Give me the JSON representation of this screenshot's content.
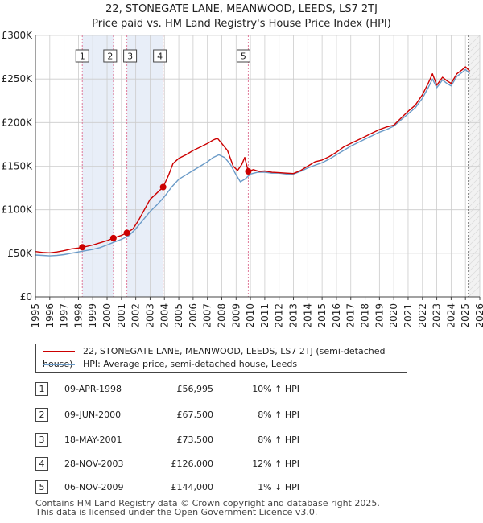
{
  "title_line1": "22, STONEGATE LANE, MEANWOOD, LEEDS, LS7 2TJ",
  "title_line2": "Price paid vs. HM Land Registry's House Price Index (HPI)",
  "legend": {
    "red_label": "22, STONEGATE LANE, MEANWOOD, LEEDS, LS7 2TJ (semi-detached house)",
    "blue_label": "HPI: Average price, semi-detached house, Leeds"
  },
  "colors": {
    "red": "#cc0000",
    "blue": "#6b9bc8",
    "band": "#e8eef8",
    "grid": "#cccccc"
  },
  "transactions": [
    {
      "num": "1",
      "date": "09-APR-1998",
      "price": "£56,995",
      "hpi": "10% ↑ HPI"
    },
    {
      "num": "2",
      "date": "09-JUN-2000",
      "price": "£67,500",
      "hpi": "8% ↑ HPI"
    },
    {
      "num": "3",
      "date": "18-MAY-2001",
      "price": "£73,500",
      "hpi": "8% ↑ HPI"
    },
    {
      "num": "4",
      "date": "28-NOV-2003",
      "price": "£126,000",
      "hpi": "12% ↑ HPI"
    },
    {
      "num": "5",
      "date": "06-NOV-2009",
      "price": "£144,000",
      "hpi": "1% ↓ HPI"
    }
  ],
  "footer_line1": "Contains HM Land Registry data © Crown copyright and database right 2025.",
  "footer_line2": "This data is licensed under the Open Government Licence v3.0.",
  "chart_data": {
    "type": "line",
    "title": "Price paid vs. HM Land Registry's House Price Index (HPI)",
    "xlim": [
      1995,
      2026
    ],
    "ylim": [
      0,
      300000
    ],
    "y_ticks": [
      0,
      50000,
      100000,
      150000,
      200000,
      250000,
      300000
    ],
    "y_tick_labels": [
      "£0",
      "£50K",
      "£100K",
      "£150K",
      "£200K",
      "£250K",
      "£300K"
    ],
    "x_ticks": [
      1995,
      1996,
      1997,
      1998,
      1999,
      2000,
      2001,
      2002,
      2003,
      2004,
      2005,
      2006,
      2007,
      2008,
      2009,
      2010,
      2011,
      2012,
      2013,
      2014,
      2015,
      2016,
      2017,
      2018,
      2019,
      2020,
      2021,
      2022,
      2023,
      2024,
      2025,
      2026
    ],
    "grid": true,
    "shaded_spans": [
      [
        1998.27,
        2000.44
      ],
      [
        2001.38,
        2003.91
      ]
    ],
    "forecast_start": 2025.2,
    "sale_points": [
      {
        "label": "1",
        "x": 1998.27,
        "y": 56995
      },
      {
        "label": "2",
        "x": 2000.44,
        "y": 67500
      },
      {
        "label": "3",
        "x": 2001.38,
        "y": 73500
      },
      {
        "label": "4",
        "x": 2003.91,
        "y": 126000
      },
      {
        "label": "5",
        "x": 2009.85,
        "y": 144000
      }
    ],
    "series": [
      {
        "name": "22, STONEGATE LANE, MEANWOOD, LEEDS, LS7 2TJ (semi-detached house)",
        "color": "#cc0000",
        "x": [
          1995.0,
          1995.5,
          1996.0,
          1996.5,
          1997.0,
          1997.5,
          1998.0,
          1998.27,
          1998.6,
          1999.0,
          1999.5,
          2000.0,
          2000.44,
          2000.8,
          2001.0,
          2001.38,
          2001.8,
          2002.2,
          2002.6,
          2003.0,
          2003.4,
          2003.91,
          2004.3,
          2004.6,
          2005.0,
          2005.5,
          2006.0,
          2006.5,
          2007.0,
          2007.4,
          2007.7,
          2008.0,
          2008.4,
          2008.8,
          2009.1,
          2009.4,
          2009.6,
          2009.85,
          2010.2,
          2010.6,
          2011.0,
          2011.5,
          2012.0,
          2012.5,
          2013.0,
          2013.5,
          2014.0,
          2014.5,
          2015.0,
          2015.5,
          2016.0,
          2016.5,
          2017.0,
          2017.5,
          2018.0,
          2018.5,
          2019.0,
          2019.5,
          2020.0,
          2020.5,
          2021.0,
          2021.5,
          2022.0,
          2022.4,
          2022.7,
          2023.0,
          2023.4,
          2023.7,
          2024.0,
          2024.4,
          2024.8,
          2025.0,
          2025.3
        ],
        "values": [
          52000,
          51000,
          50500,
          51500,
          53000,
          55000,
          56000,
          56995,
          58000,
          59500,
          62000,
          64500,
          67500,
          69500,
          70500,
          73500,
          78000,
          88000,
          100000,
          112000,
          118000,
          126000,
          140000,
          153000,
          159000,
          163000,
          168000,
          172000,
          176000,
          180000,
          182000,
          176000,
          168000,
          150000,
          145000,
          152000,
          160000,
          144000,
          146000,
          144000,
          144500,
          143000,
          142500,
          142000,
          141500,
          145000,
          150000,
          155000,
          157000,
          161000,
          166000,
          172000,
          176000,
          180000,
          184000,
          188000,
          192000,
          195000,
          197000,
          205000,
          213000,
          220000,
          232000,
          245000,
          256000,
          243000,
          252000,
          248000,
          245000,
          256000,
          261000,
          264000,
          259000
        ]
      },
      {
        "name": "HPI: Average price, semi-detached house, Leeds",
        "color": "#6b9bc8",
        "x": [
          1995.0,
          1995.5,
          1996.0,
          1996.5,
          1997.0,
          1997.5,
          1998.0,
          1998.5,
          1999.0,
          1999.5,
          2000.0,
          2000.5,
          2001.0,
          2001.5,
          2002.0,
          2002.5,
          2003.0,
          2003.5,
          2004.0,
          2004.5,
          2005.0,
          2005.5,
          2006.0,
          2006.5,
          2007.0,
          2007.4,
          2007.8,
          2008.2,
          2008.6,
          2009.0,
          2009.3,
          2009.6,
          2010.0,
          2010.5,
          2011.0,
          2011.5,
          2012.0,
          2012.5,
          2013.0,
          2013.5,
          2014.0,
          2014.5,
          2015.0,
          2015.5,
          2016.0,
          2016.5,
          2017.0,
          2017.5,
          2018.0,
          2018.5,
          2019.0,
          2019.5,
          2020.0,
          2020.5,
          2021.0,
          2021.5,
          2022.0,
          2022.4,
          2022.7,
          2023.0,
          2023.4,
          2023.7,
          2024.0,
          2024.4,
          2024.8,
          2025.0,
          2025.3
        ],
        "values": [
          48000,
          47500,
          47000,
          47500,
          48500,
          50000,
          51500,
          53000,
          54500,
          56500,
          59500,
          63000,
          66000,
          70000,
          78000,
          88000,
          98000,
          106000,
          115000,
          126000,
          135000,
          140000,
          145000,
          150000,
          155000,
          160000,
          163000,
          160000,
          152000,
          140000,
          132000,
          135000,
          141000,
          143000,
          143000,
          142000,
          142000,
          141000,
          141000,
          144000,
          148000,
          151000,
          154000,
          158000,
          163000,
          168000,
          173000,
          177000,
          181000,
          185000,
          189000,
          192000,
          196000,
          203000,
          210000,
          217000,
          228000,
          240000,
          250000,
          240000,
          249000,
          245000,
          242000,
          253000,
          258000,
          261000,
          256000
        ]
      }
    ]
  }
}
